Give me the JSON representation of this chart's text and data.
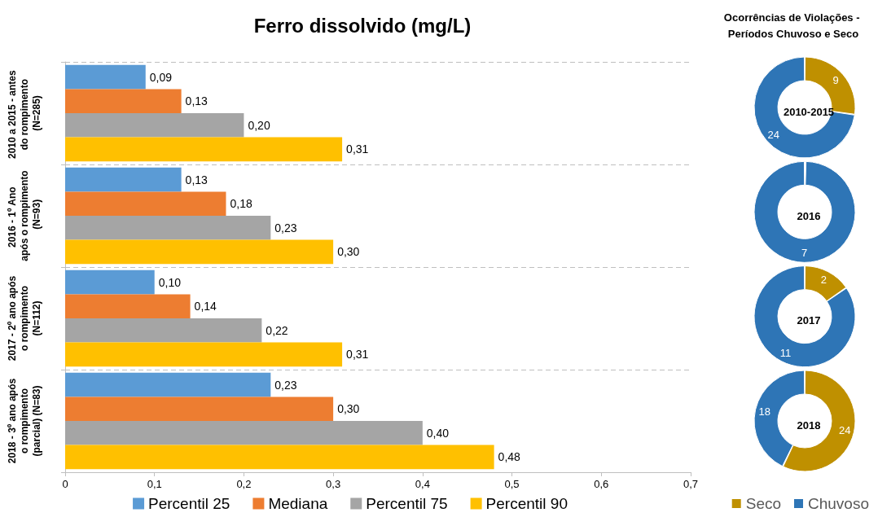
{
  "chart_data": [
    {
      "type": "bar",
      "orientation": "horizontal",
      "title": "Ferro dissolvido (mg/L)",
      "categories": [
        "2010 a 2015 - antes do rompimento (N=285)",
        "2016 - 1º Ano após o rompimento (N=93)",
        "2017 - 2º ano após o rompimento (N=112)",
        "2018 - 3º ano após o rompimento (parcial) (N=83)"
      ],
      "series": [
        {
          "name": "Percentil 25",
          "color": "#5b9bd5",
          "values": [
            0.09,
            0.13,
            0.1,
            0.23
          ],
          "value_labels": [
            "0,09",
            "0,13",
            "0,10",
            "0,23"
          ]
        },
        {
          "name": "Mediana",
          "color": "#ed7d31",
          "values": [
            0.13,
            0.18,
            0.14,
            0.3
          ],
          "value_labels": [
            "0,13",
            "0,18",
            "0,14",
            "0,30"
          ]
        },
        {
          "name": "Percentil 75",
          "color": "#a5a5a5",
          "values": [
            0.2,
            0.23,
            0.22,
            0.4
          ],
          "value_labels": [
            "0,20",
            "0,23",
            "0,22",
            "0,40"
          ]
        },
        {
          "name": "Percentil 90",
          "color": "#ffc000",
          "values": [
            0.31,
            0.3,
            0.31,
            0.48
          ],
          "value_labels": [
            "0,31",
            "0,30",
            "0,31",
            "0,48"
          ]
        }
      ],
      "xlim": [
        0,
        0.7
      ],
      "xticks": [
        0,
        {
          "value": 0.1,
          "label": "0,1"
        },
        {
          "value": 0.2,
          "label": "0,2"
        },
        {
          "value": 0.3,
          "label": "0,3"
        },
        {
          "value": 0.4,
          "label": "0,4"
        },
        {
          "value": 0.5,
          "label": "0,5"
        },
        {
          "value": 0.6,
          "label": "0,6"
        },
        {
          "value": 0.7,
          "label": "0,7"
        }
      ],
      "grid": "y",
      "legend": "bottom"
    },
    {
      "type": "donut",
      "title": "Ocorrências de Violações - Períodos Chuvoso e Seco",
      "categories": [
        "Seco",
        "Chuvoso"
      ],
      "colors": [
        "#bf9000",
        "#2e75b6"
      ],
      "legend": "bottom",
      "series": [
        {
          "name": "2010-2015",
          "values": [
            9,
            24
          ],
          "value_labels": [
            "9",
            "24"
          ]
        },
        {
          "name": "2016",
          "values": [
            0,
            7
          ],
          "value_labels": [
            null,
            "7"
          ]
        },
        {
          "name": "2017",
          "values": [
            2,
            11
          ],
          "value_labels": [
            "2",
            "11"
          ]
        },
        {
          "name": "2018",
          "values": [
            24,
            18
          ],
          "value_labels": [
            "24",
            "18"
          ]
        }
      ]
    }
  ]
}
